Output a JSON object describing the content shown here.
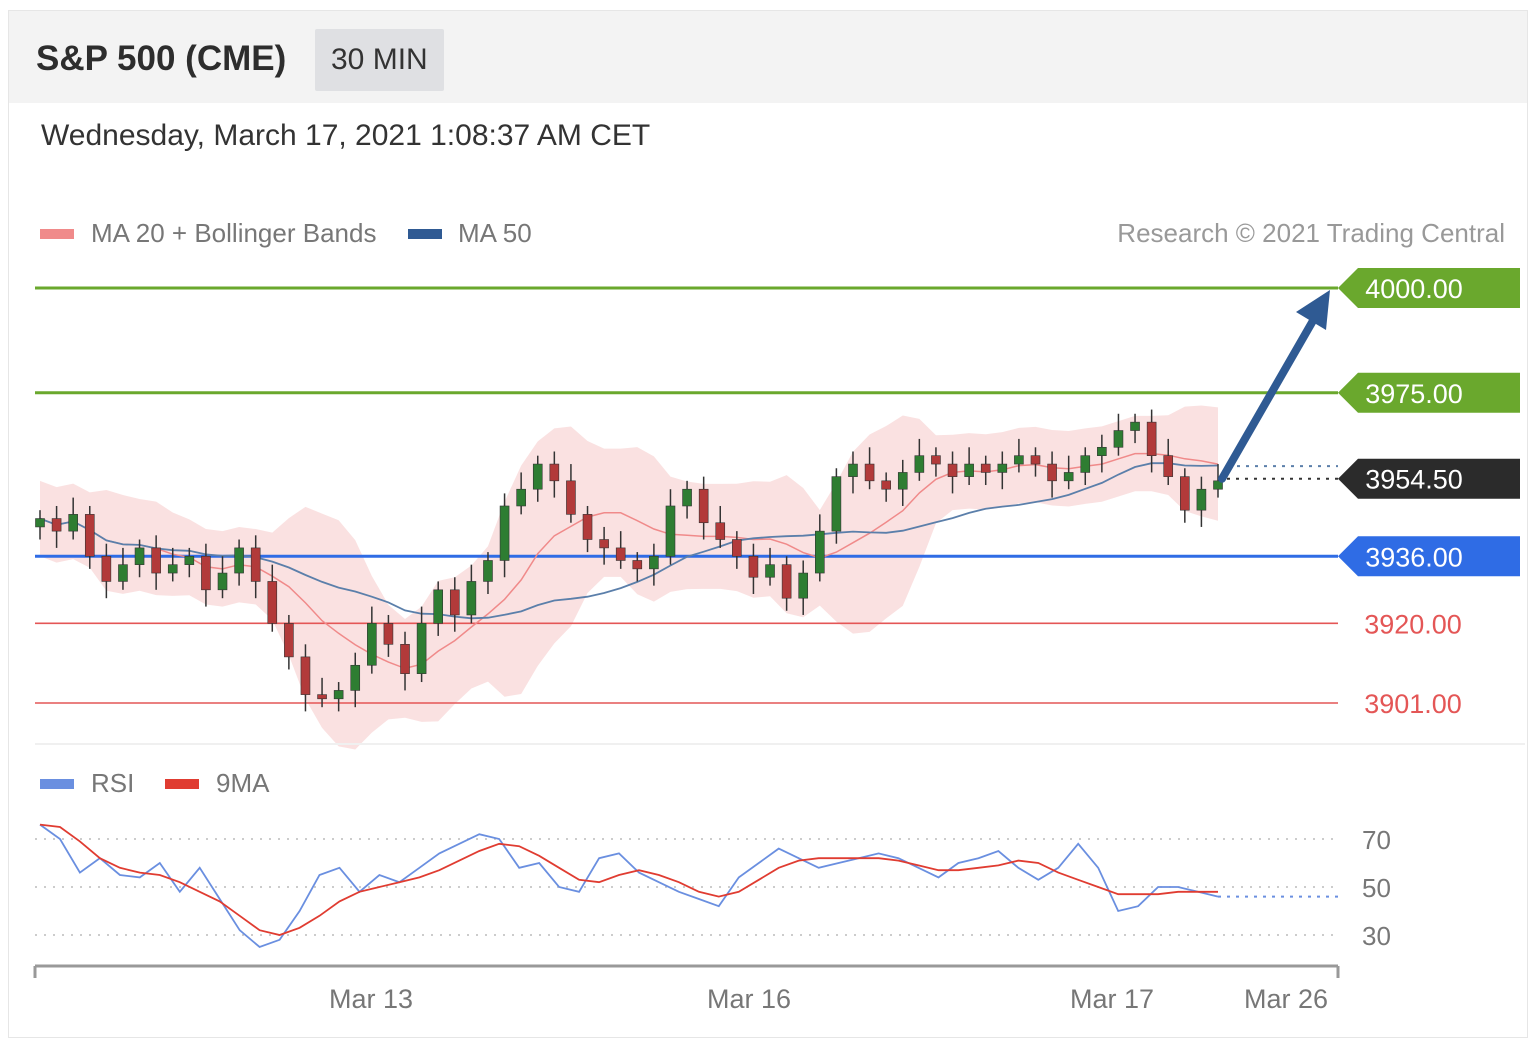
{
  "header": {
    "title": "S&P 500 (CME)",
    "interval": "30 MIN"
  },
  "datetime": "Wednesday, March 17, 2021 1:08:37 AM CET",
  "legend": {
    "ma20": "MA 20 + Bollinger Bands",
    "ma50": "MA 50",
    "copyright": "Research © 2021 Trading Central"
  },
  "rsi_legend": {
    "rsi": "RSI",
    "ma9": "9MA"
  },
  "colors": {
    "resistance": "#6aa82d",
    "pivot": "#2f6ce5",
    "support": "#e45656",
    "last": "#2b2b2b",
    "arrow": "#2f5a93",
    "bull": "#2e7d32",
    "bear": "#b23a3a",
    "band": "#f9dcdc",
    "ma20": "#f08a8a",
    "ma50": "#5b7faa",
    "rsi": "#6a8fe0",
    "rsi_ma": "#e03c31"
  },
  "chart_data": [
    {
      "type": "candlestick",
      "title": "S&P 500 (CME)",
      "ylim": [
        3890,
        4010
      ],
      "x_tick_labels": [
        "Mar 13",
        "Mar 16",
        "Mar 17",
        "Mar 26"
      ],
      "levels": [
        {
          "value": 4000.0,
          "label": "4000.00",
          "kind": "resistance"
        },
        {
          "value": 3975.0,
          "label": "3975.00",
          "kind": "resistance"
        },
        {
          "value": 3954.5,
          "label": "3954.50",
          "kind": "last"
        },
        {
          "value": 3936.0,
          "label": "3936.00",
          "kind": "pivot"
        },
        {
          "value": 3920.0,
          "label": "3920.00",
          "kind": "support"
        },
        {
          "value": 3901.0,
          "label": "3901.00",
          "kind": "support"
        }
      ],
      "close_path": [
        3945,
        3942,
        3946,
        3936,
        3930,
        3934,
        3938,
        3932,
        3934,
        3936,
        3928,
        3932,
        3938,
        3930,
        3920,
        3912,
        3903,
        3902,
        3904,
        3910,
        3920,
        3915,
        3908,
        3920,
        3928,
        3922,
        3930,
        3935,
        3948,
        3952,
        3958,
        3954,
        3946,
        3940,
        3938,
        3935,
        3933,
        3936,
        3948,
        3952,
        3944,
        3940,
        3936,
        3931,
        3934,
        3926,
        3932,
        3942,
        3955,
        3958,
        3954,
        3952,
        3956,
        3960,
        3958,
        3955,
        3958,
        3956,
        3958,
        3960,
        3958,
        3954,
        3956,
        3960,
        3962,
        3966,
        3968,
        3960,
        3955,
        3947,
        3952,
        3954
      ],
      "forecast_arrow": {
        "from": 3954.5,
        "to": 4000.0
      }
    },
    {
      "type": "line",
      "title": "RSI",
      "yticks": [
        70,
        50,
        30
      ],
      "series": [
        {
          "name": "RSI",
          "values": [
            76,
            70,
            56,
            62,
            55,
            54,
            60,
            48,
            58,
            45,
            32,
            25,
            28,
            40,
            55,
            58,
            48,
            55,
            52,
            58,
            64,
            68,
            72,
            70,
            58,
            60,
            50,
            48,
            62,
            64,
            56,
            52,
            48,
            45,
            42,
            54,
            60,
            66,
            62,
            58,
            60,
            62,
            64,
            62,
            58,
            54,
            60,
            62,
            65,
            58,
            53,
            58,
            68,
            58,
            40,
            42,
            50,
            50,
            48,
            46
          ]
        },
        {
          "name": "9MA",
          "values": [
            76,
            75,
            69,
            62,
            58,
            56,
            55,
            52,
            48,
            44,
            38,
            32,
            30,
            33,
            38,
            44,
            48,
            50,
            52,
            54,
            57,
            61,
            65,
            68,
            67,
            63,
            58,
            53,
            52,
            55,
            57,
            55,
            52,
            48,
            46,
            48,
            53,
            58,
            61,
            62,
            62,
            62,
            62,
            61,
            59,
            57,
            57,
            58,
            59,
            61,
            60,
            56,
            53,
            50,
            47,
            47,
            47,
            48,
            48,
            48
          ]
        }
      ]
    }
  ]
}
